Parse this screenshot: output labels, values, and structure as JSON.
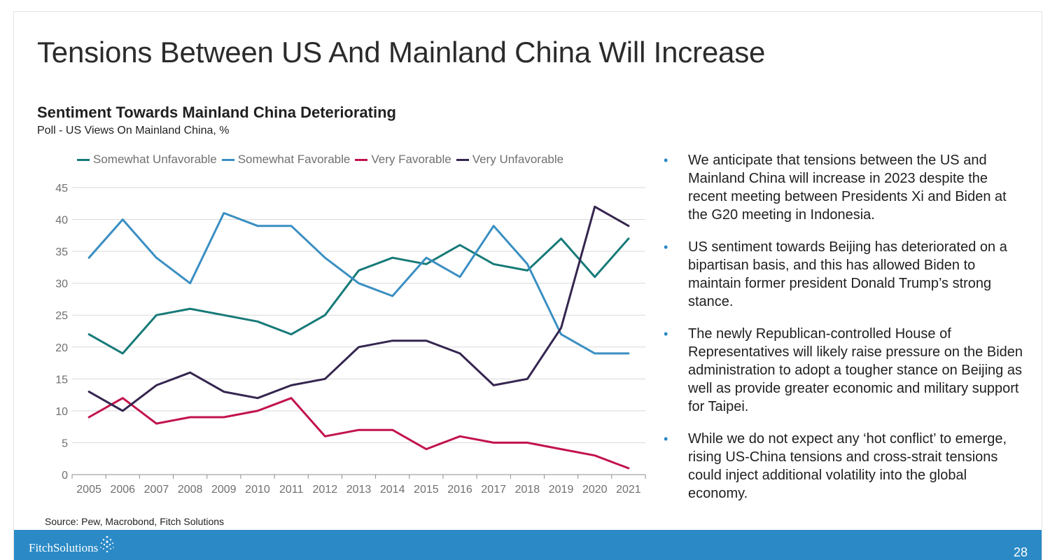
{
  "slide": {
    "title": "Tensions Between US And Mainland China Will Increase",
    "page_number": "28",
    "source": "Source: Pew, Macrobond, Fitch Solutions",
    "logo_text": "FitchSolutions",
    "footer_color": "#2b8ac6"
  },
  "bullets": [
    "We anticipate that tensions between the US and Mainland China will increase in 2023 despite the recent meeting between Presidents Xi and Biden at the G20 meeting in Indonesia.",
    "US sentiment towards Beijing has deteriorated on a bipartisan basis, and this has allowed Biden to maintain former president Donald Trump’s strong stance.",
    "The newly Republican-controlled House of Representatives will likely raise pressure on the Biden administration to adopt a tougher stance on Beijing as well as provide greater economic and military support for Taipei.",
    "While we do not expect any ‘hot conflict’ to emerge, rising US-China tensions and cross-strait tensions could inject additional volatility into the global economy."
  ],
  "chart_data": {
    "type": "line",
    "title": "Sentiment Towards Mainland China Deteriorating",
    "subtitle": "Poll - US Views On Mainland China, %",
    "xlabel": "",
    "ylabel": "",
    "ylim": [
      0,
      45
    ],
    "yticks": [
      0,
      5,
      10,
      15,
      20,
      25,
      30,
      35,
      40,
      45
    ],
    "grid": "horizontal",
    "legend_position": "top",
    "categories": [
      "2005",
      "2006",
      "2007",
      "2008",
      "2009",
      "2010",
      "2011",
      "2012",
      "2013",
      "2014",
      "2015",
      "2016",
      "2017",
      "2018",
      "2019",
      "2020",
      "2021"
    ],
    "series": [
      {
        "name": "Somewhat Unfavorable",
        "color": "#167a78",
        "values": [
          22,
          19,
          25,
          26,
          25,
          24,
          22,
          25,
          32,
          34,
          33,
          36,
          33,
          32,
          37,
          31,
          37
        ]
      },
      {
        "name": "Somewhat Favorable",
        "color": "#3a8fc2",
        "values": [
          34,
          40,
          34,
          30,
          41,
          39,
          39,
          34,
          30,
          28,
          34,
          31,
          39,
          33,
          22,
          19,
          19
        ]
      },
      {
        "name": "Very Favorable",
        "color": "#c2134b",
        "values": [
          9,
          12,
          8,
          9,
          9,
          10,
          12,
          6,
          7,
          7,
          4,
          6,
          5,
          5,
          4,
          3,
          1
        ]
      },
      {
        "name": "Very Unfavorable",
        "color": "#35254f",
        "values": [
          13,
          10,
          14,
          16,
          13,
          12,
          14,
          15,
          20,
          21,
          21,
          19,
          14,
          15,
          23,
          42,
          39
        ]
      }
    ]
  }
}
